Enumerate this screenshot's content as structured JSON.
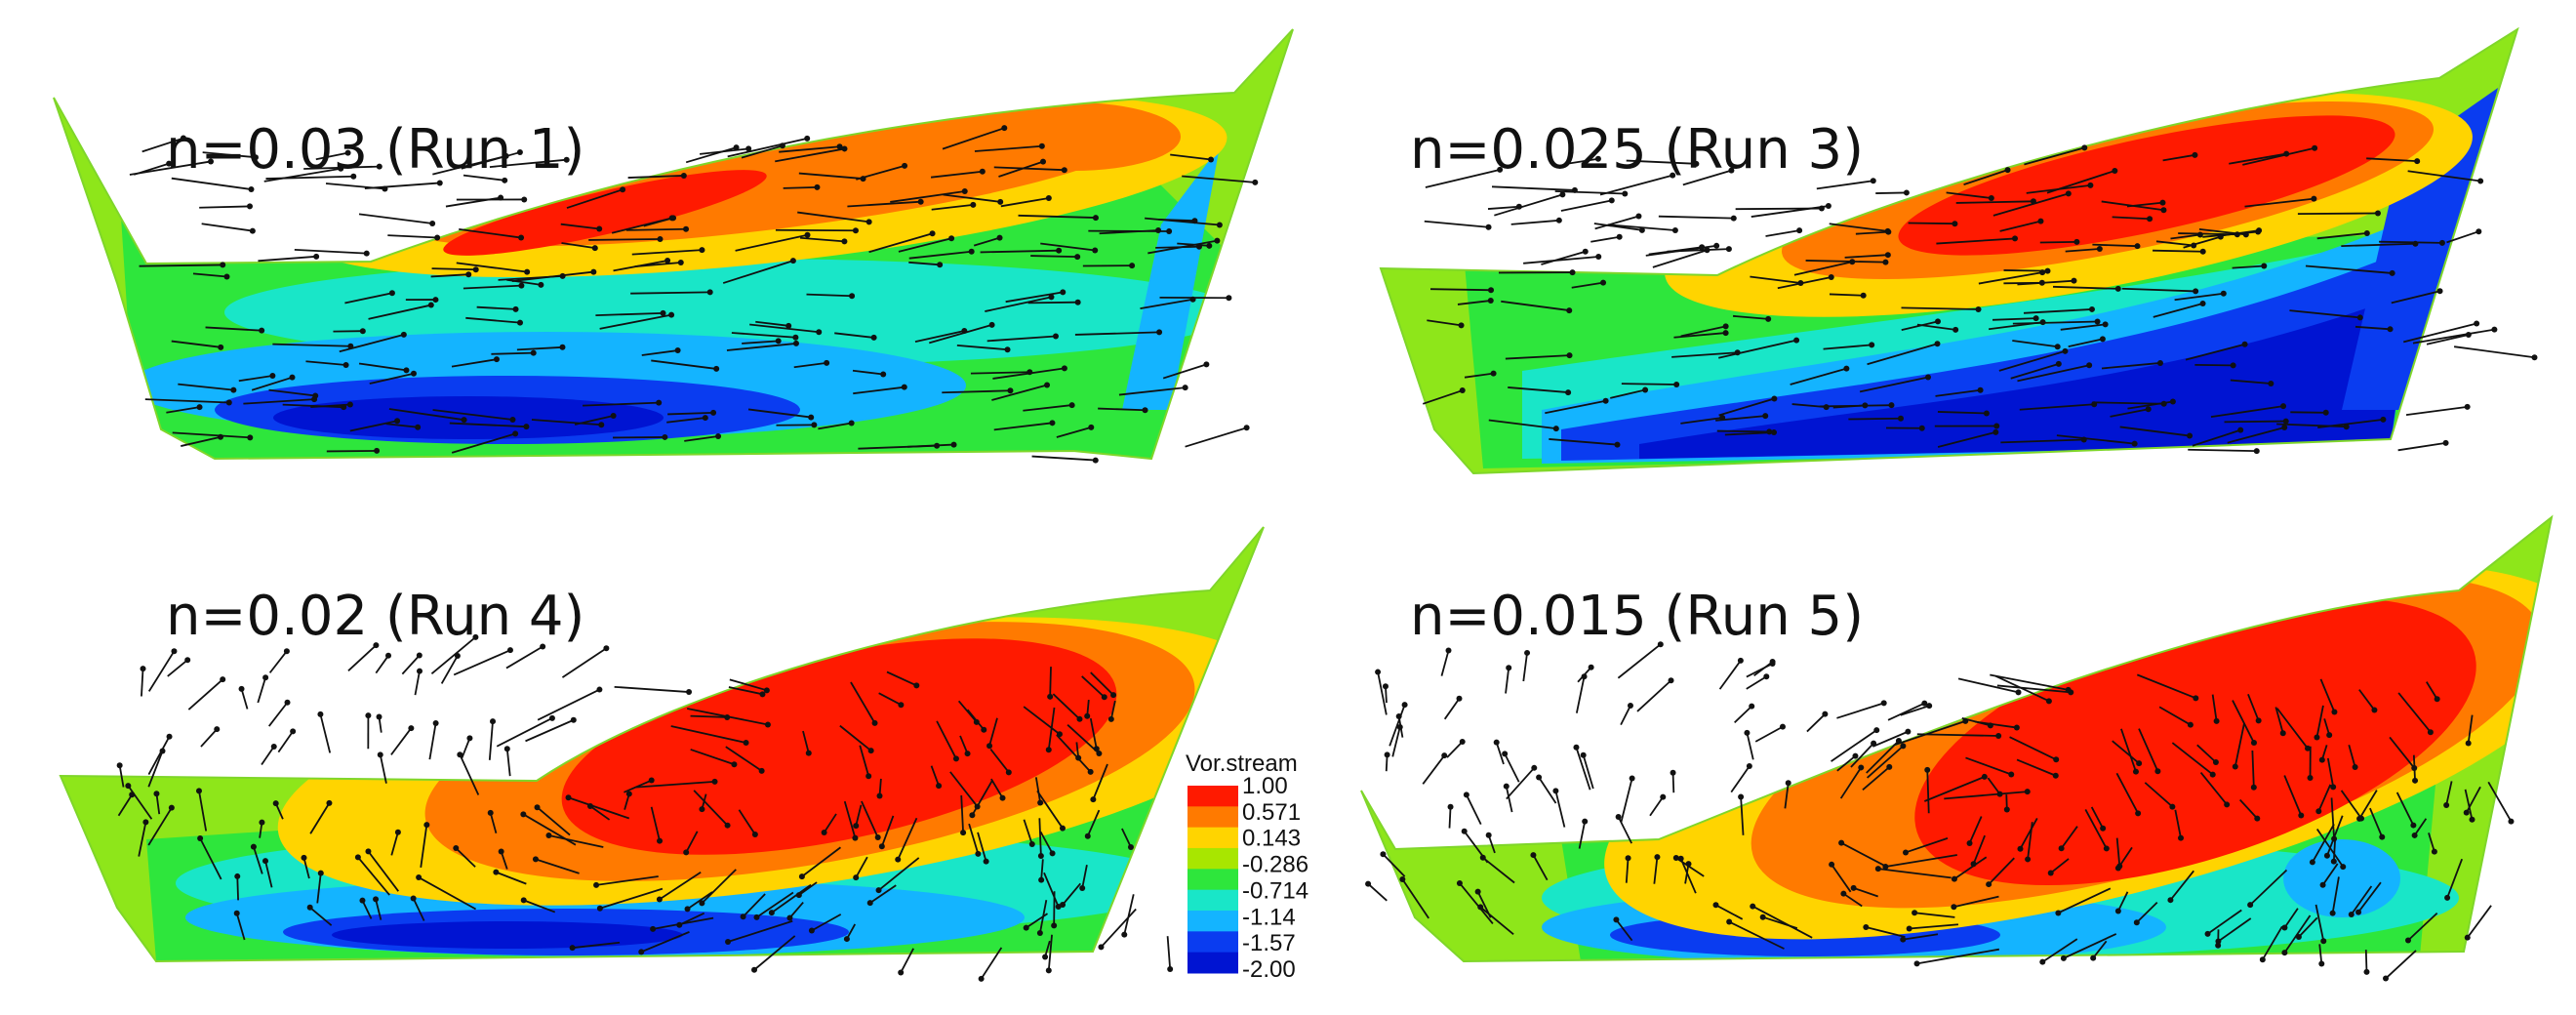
{
  "panels": [
    {
      "label": "n=0.03 (Run 1)"
    },
    {
      "label": "n=0.025 (Run 3)"
    },
    {
      "label": "n=0.02 (Run 4)"
    },
    {
      "label": "n=0.015 (Run 5)"
    }
  ],
  "legend": {
    "title": "Vor.stream",
    "ticks": [
      "1.00",
      "0.571",
      "0.143",
      "-0.286",
      "-0.714",
      "-1.14",
      "-1.57",
      "-2.00"
    ],
    "colors": [
      "#ff1a00",
      "#ff7a00",
      "#ffd400",
      "#a8e600",
      "#2ee63c",
      "#19e6c8",
      "#14b4ff",
      "#0a3cf0",
      "#0014d2"
    ]
  }
}
